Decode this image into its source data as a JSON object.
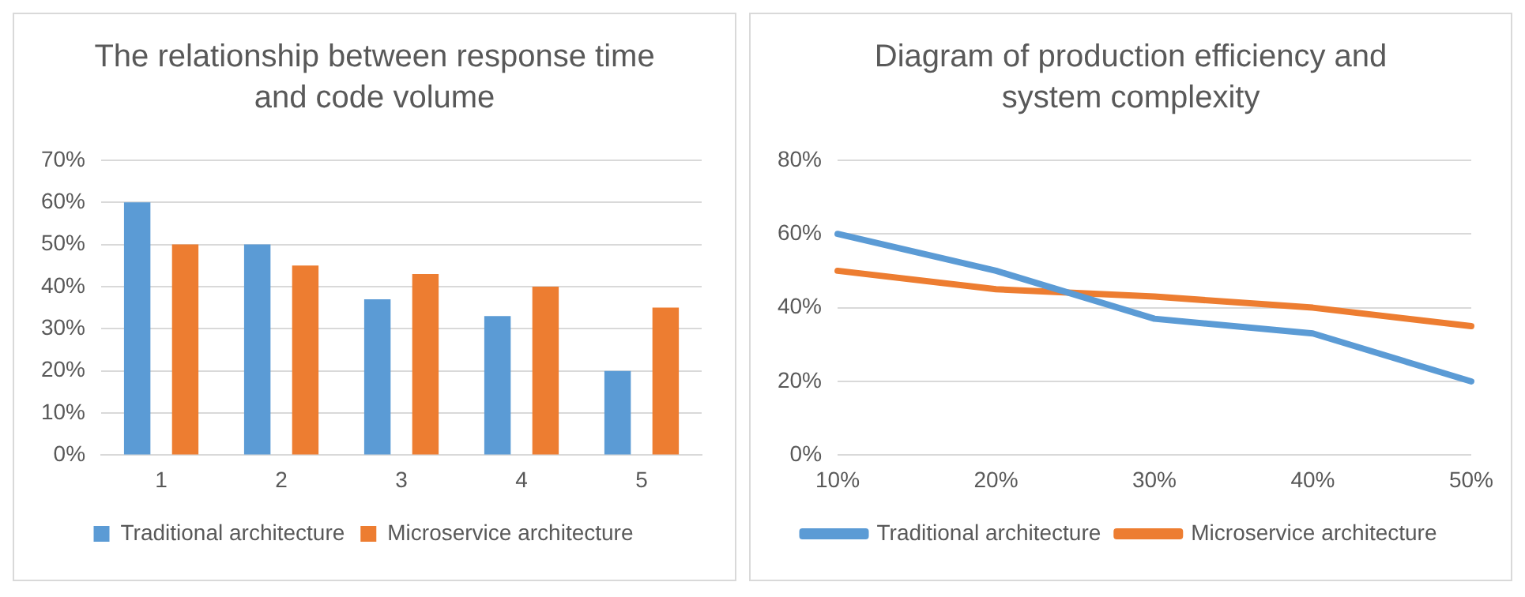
{
  "chart_data": [
    {
      "type": "bar",
      "title": "The relationship between response time and code volume",
      "categories": [
        "1",
        "2",
        "3",
        "4",
        "5"
      ],
      "series": [
        {
          "name": "Traditional architecture",
          "color": "#5b9bd5",
          "values": [
            60,
            50,
            37,
            33,
            20
          ]
        },
        {
          "name": "Microservice architecture",
          "color": "#ed7d31",
          "values": [
            50,
            45,
            43,
            40,
            35
          ]
        }
      ],
      "ylim": [
        0,
        70
      ],
      "yticks": [
        {
          "value": 0,
          "label": "0%"
        },
        {
          "value": 10,
          "label": "10%"
        },
        {
          "value": 20,
          "label": "20%"
        },
        {
          "value": 30,
          "label": "30%"
        },
        {
          "value": 40,
          "label": "40%"
        },
        {
          "value": 50,
          "label": "50%"
        },
        {
          "value": 60,
          "label": "60%"
        },
        {
          "value": 70,
          "label": "70%"
        }
      ],
      "grid": "y",
      "legend": "bottom"
    },
    {
      "type": "line",
      "title": "Diagram of production efficiency and system complexity",
      "categories": [
        "10%",
        "20%",
        "30%",
        "40%",
        "50%"
      ],
      "series": [
        {
          "name": "Traditional architecture",
          "color": "#5b9bd5",
          "values": [
            60,
            50,
            37,
            33,
            20
          ]
        },
        {
          "name": "Microservice architecture",
          "color": "#ed7d31",
          "values": [
            50,
            45,
            43,
            40,
            35
          ]
        }
      ],
      "ylim": [
        0,
        80
      ],
      "yticks": [
        {
          "value": 0,
          "label": "0%"
        },
        {
          "value": 20,
          "label": "20%"
        },
        {
          "value": 40,
          "label": "40%"
        },
        {
          "value": 60,
          "label": "60%"
        },
        {
          "value": 80,
          "label": "80%"
        }
      ],
      "grid": "y",
      "legend": "bottom",
      "marker": "none"
    }
  ]
}
